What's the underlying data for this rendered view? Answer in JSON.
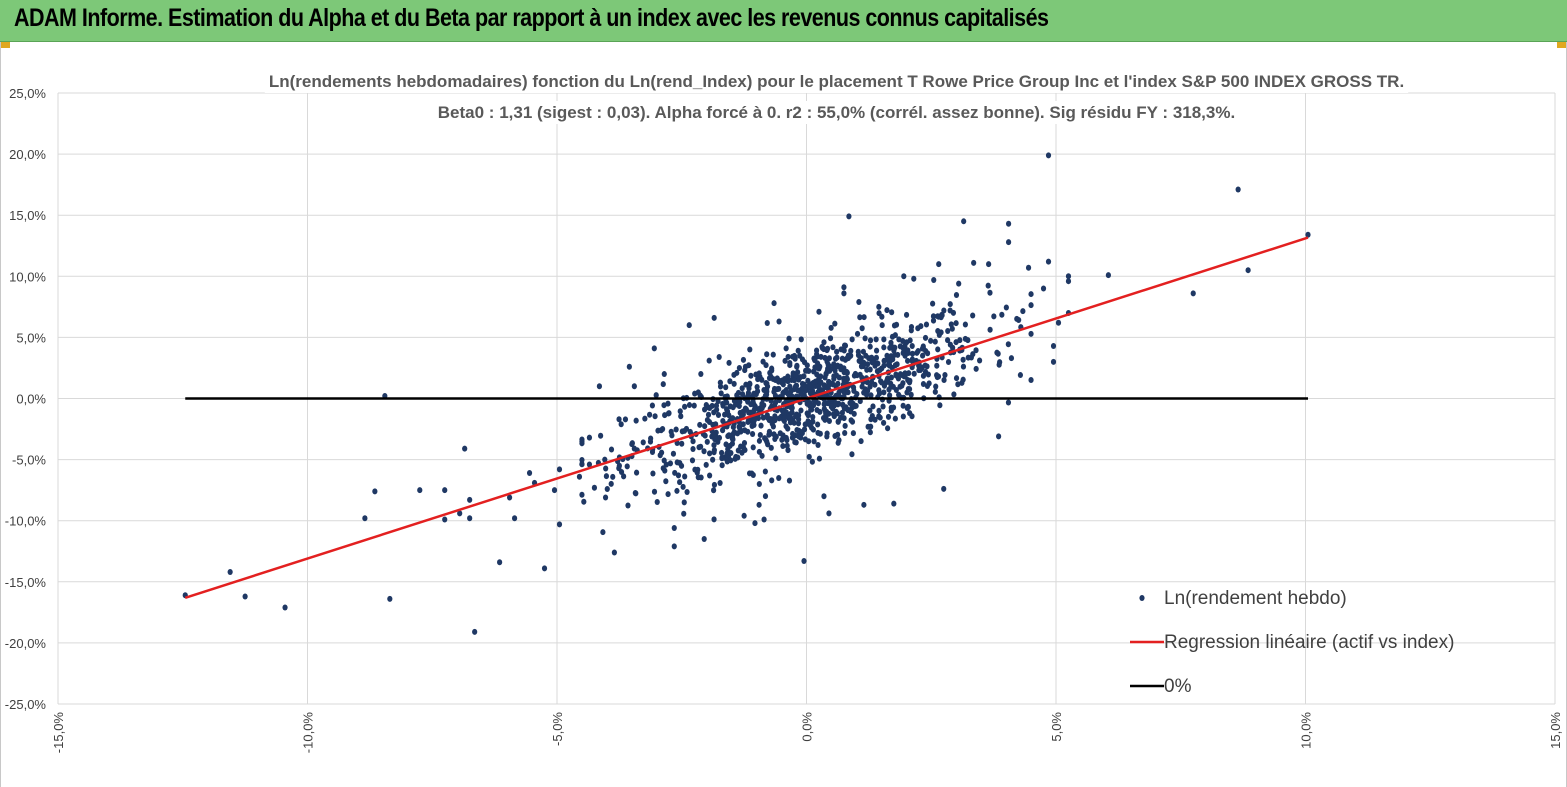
{
  "header": {
    "title": "ADAM Informe. Estimation du Alpha et du Beta par rapport à un index avec les revenus connus capitalisés"
  },
  "colors": {
    "header_bg": "#7dc878",
    "points": "#1f3864",
    "regression": "#e32020",
    "zero_line": "#000000",
    "grid": "#d9d9d9"
  },
  "chart_data": {
    "type": "scatter",
    "title_line1": "Ln(rendements hebdomadaires) fonction du Ln(rend_Index) pour le placement T Rowe Price Group Inc et l'index S&P 500 INDEX GROSS TR.",
    "title_line2": "Beta0 : 1,31  (sigest : 0,03).  Alpha forcé à 0. r2 : 55,0% (corrél. assez bonne). Sig résidu FY : 318,3%.",
    "xlim": [
      -0.15,
      0.15
    ],
    "ylim": [
      -0.25,
      0.25
    ],
    "x_ticks": [
      -0.15,
      -0.1,
      -0.05,
      0.0,
      0.05,
      0.1,
      0.15
    ],
    "y_ticks": [
      0.25,
      0.2,
      0.15,
      0.1,
      0.05,
      0.0,
      -0.05,
      -0.1,
      -0.15,
      -0.2,
      -0.25
    ],
    "x_tick_labels": [
      "-15,0%",
      "-10,0%",
      "-5,0%",
      "0,0%",
      "5,0%",
      "10,0%",
      "15,0%"
    ],
    "y_tick_labels": [
      "25,0%",
      "20,0%",
      "15,0%",
      "10,0%",
      "5,0%",
      "0,0%",
      "-5,0%",
      "-10,0%",
      "-15,0%",
      "-20,0%",
      "-25,0%"
    ],
    "grid": true,
    "legend_position": "bottom-right",
    "series": [
      {
        "name": "Ln(rendement hebdo)",
        "kind": "scatter",
        "color": "#1f3864",
        "points": [
          [
            -0.1245,
            -0.161
          ],
          [
            -0.1155,
            -0.142
          ],
          [
            -0.1125,
            -0.162
          ],
          [
            -0.1045,
            -0.171
          ],
          [
            -0.0885,
            -0.098
          ],
          [
            -0.0865,
            -0.076
          ],
          [
            -0.0845,
            0.002
          ],
          [
            -0.0835,
            -0.164
          ],
          [
            -0.0775,
            -0.075
          ],
          [
            -0.0725,
            -0.099
          ],
          [
            -0.0725,
            -0.075
          ],
          [
            -0.0695,
            -0.094
          ],
          [
            -0.0685,
            -0.041
          ],
          [
            -0.0675,
            -0.098
          ],
          [
            -0.0675,
            -0.083
          ],
          [
            -0.0665,
            -0.191
          ],
          [
            -0.0615,
            -0.134
          ],
          [
            -0.0595,
            -0.081
          ],
          [
            -0.0585,
            -0.098
          ],
          [
            -0.0555,
            -0.061
          ],
          [
            -0.0545,
            -0.069
          ],
          [
            -0.0525,
            -0.139
          ],
          [
            -0.0505,
            -0.075
          ],
          [
            -0.0495,
            -0.103
          ],
          [
            -0.0495,
            -0.058
          ],
          [
            -0.0455,
            -0.064
          ],
          [
            -0.0435,
            -0.032
          ],
          [
            -0.0435,
            -0.054
          ],
          [
            -0.0425,
            -0.073
          ],
          [
            -0.0415,
            0.01
          ],
          [
            -0.0385,
            -0.126
          ],
          [
            -0.0375,
            -0.055
          ],
          [
            -0.0355,
            0.026
          ],
          [
            -0.0345,
            -0.041
          ],
          [
            -0.0345,
            0.01
          ],
          [
            -0.0305,
            0.041
          ],
          [
            -0.0285,
            0.02
          ],
          [
            -0.0265,
            -0.121
          ],
          [
            -0.0265,
            -0.106
          ],
          [
            -0.0245,
            -0.085
          ],
          [
            -0.0235,
            0.06
          ],
          [
            -0.0205,
            -0.115
          ],
          [
            -0.0195,
            0.031
          ],
          [
            -0.0185,
            0.066
          ],
          [
            -0.0175,
            0.034
          ],
          [
            -0.0145,
            0.012
          ],
          [
            -0.0125,
            -0.096
          ],
          [
            -0.0095,
            -0.087
          ],
          [
            -0.0085,
            -0.099
          ],
          [
            -0.0065,
            0.078
          ],
          [
            -0.0055,
            0.063
          ],
          [
            -0.0035,
            0.049
          ],
          [
            -0.0005,
            -0.133
          ],
          [
            0.0025,
            0.071
          ],
          [
            0.0035,
            0.046
          ],
          [
            0.0035,
            -0.08
          ],
          [
            0.0045,
            -0.094
          ],
          [
            0.0075,
            0.086
          ],
          [
            0.0075,
            0.091
          ],
          [
            0.0085,
            0.149
          ],
          [
            0.0105,
            0.079
          ],
          [
            0.0115,
            -0.087
          ],
          [
            0.0145,
            0.075
          ],
          [
            0.0175,
            -0.086
          ],
          [
            0.0195,
            0.1
          ],
          [
            0.0215,
            0.098
          ],
          [
            0.0255,
            0.097
          ],
          [
            0.0265,
            0.11
          ],
          [
            0.0275,
            -0.074
          ],
          [
            0.0305,
            0.094
          ],
          [
            0.0315,
            0.145
          ],
          [
            0.0335,
            0.111
          ],
          [
            0.0365,
            0.11
          ],
          [
            0.0385,
            -0.031
          ],
          [
            0.0405,
            0.128
          ],
          [
            0.0405,
            0.143
          ],
          [
            0.0445,
            0.107
          ],
          [
            0.0485,
            0.199
          ],
          [
            0.0475,
            0.09
          ],
          [
            0.0485,
            0.112
          ],
          [
            0.0495,
            0.03
          ],
          [
            0.0495,
            0.043
          ],
          [
            0.0505,
            0.062
          ],
          [
            0.0525,
            0.1
          ],
          [
            0.0525,
            0.096
          ],
          [
            0.0525,
            0.07
          ],
          [
            0.0605,
            0.101
          ],
          [
            0.0775,
            0.086
          ],
          [
            0.0865,
            0.171
          ],
          [
            0.0885,
            0.105
          ],
          [
            0.1005,
            0.134
          ]
        ],
        "cloud": {
          "center_x": 0.0,
          "center_y": 0.0,
          "spread_x": 0.018,
          "slope": 1.31,
          "residual_sd": 0.022,
          "count": 1060
        }
      },
      {
        "name": "Regression linéaire (actif vs index)",
        "kind": "line",
        "color": "#e32020",
        "x": [
          -0.1245,
          0.1005
        ],
        "y": [
          -0.1631,
          0.1317
        ]
      },
      {
        "name": "0%",
        "kind": "line",
        "color": "#000000",
        "x": [
          -0.1245,
          0.1005
        ],
        "y": [
          0.0,
          0.0
        ]
      }
    ]
  }
}
